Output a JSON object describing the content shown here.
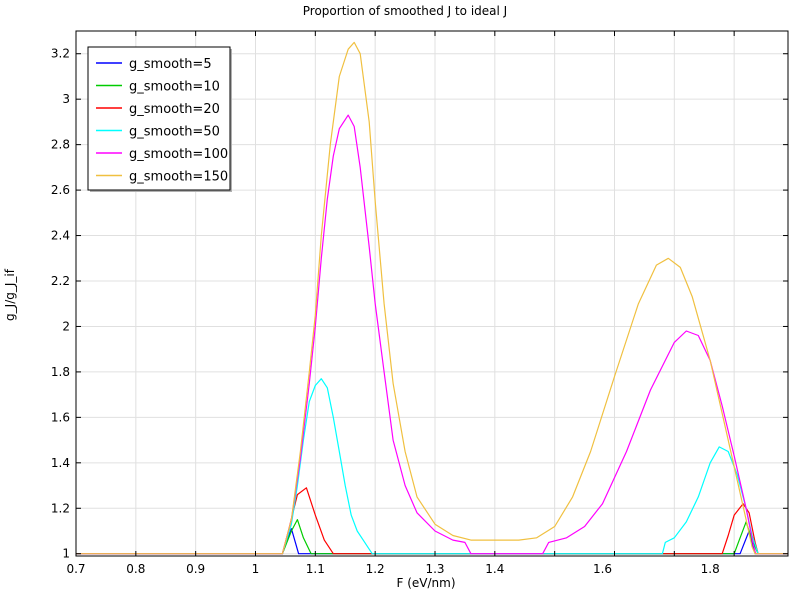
{
  "chart_data": {
    "type": "line",
    "title": "Proportion of smoothed J to ideal J",
    "xlabel": "F (eV/nm)",
    "ylabel": "g_J/g_J_if",
    "xlim": [
      0.7,
      1.89
    ],
    "ylim": [
      0.99,
      3.3
    ],
    "x_tick_values": [
      0.7,
      0.8,
      0.9,
      1.0,
      1.1,
      1.2,
      1.3,
      1.4,
      1.5,
      1.6,
      1.7,
      1.8
    ],
    "x_tick_labels": [
      "0.7",
      "0.8",
      "0.9",
      "1",
      "1.1",
      "1.2",
      "1.3",
      "1.4",
      "1.6",
      "1.8"
    ],
    "x_tick_label_positions": [
      0.7,
      0.8,
      0.9,
      1.0,
      1.1,
      1.2,
      1.3,
      1.4,
      1.58,
      1.76
    ],
    "y_ticks": [
      1,
      1.2,
      1.4,
      1.6,
      1.8,
      2,
      2.2,
      2.4,
      2.6,
      2.8,
      3,
      3.2
    ],
    "y_tick_labels": [
      "1",
      "1.2",
      "1.4",
      "1.6",
      "1.8",
      "2",
      "2.2",
      "2.4",
      "2.6",
      "2.8",
      "3",
      "3.2"
    ],
    "grid": true,
    "legend_position": "top-left",
    "series": [
      {
        "name": "g_smooth=5",
        "color": "#0000ff",
        "points": [
          [
            0.7,
            1
          ],
          [
            1.045,
            1
          ],
          [
            1.06,
            1.11
          ],
          [
            1.072,
            1
          ],
          [
            1.81,
            1
          ],
          [
            1.825,
            1.1
          ],
          [
            1.835,
            1
          ],
          [
            1.89,
            1
          ]
        ]
      },
      {
        "name": "g_smooth=10",
        "color": "#00cc00",
        "points": [
          [
            0.7,
            1
          ],
          [
            1.045,
            1
          ],
          [
            1.06,
            1.1
          ],
          [
            1.07,
            1.15
          ],
          [
            1.08,
            1.07
          ],
          [
            1.093,
            1
          ],
          [
            1.8,
            1
          ],
          [
            1.81,
            1.07
          ],
          [
            1.82,
            1.14
          ],
          [
            1.83,
            1.06
          ],
          [
            1.84,
            1
          ],
          [
            1.89,
            1
          ]
        ]
      },
      {
        "name": "g_smooth=20",
        "color": "#ff0000",
        "points": [
          [
            0.7,
            1
          ],
          [
            1.045,
            1
          ],
          [
            1.055,
            1.1
          ],
          [
            1.07,
            1.26
          ],
          [
            1.085,
            1.29
          ],
          [
            1.1,
            1.17
          ],
          [
            1.115,
            1.06
          ],
          [
            1.13,
            1
          ],
          [
            1.78,
            1
          ],
          [
            1.79,
            1.08
          ],
          [
            1.8,
            1.17
          ],
          [
            1.815,
            1.22
          ],
          [
            1.825,
            1.18
          ],
          [
            1.835,
            1.05
          ],
          [
            1.84,
            1
          ],
          [
            1.89,
            1
          ]
        ]
      },
      {
        "name": "g_smooth=50",
        "color": "#00ffff",
        "points": [
          [
            0.7,
            1
          ],
          [
            1.045,
            1
          ],
          [
            1.06,
            1.13
          ],
          [
            1.07,
            1.3
          ],
          [
            1.08,
            1.5
          ],
          [
            1.09,
            1.67
          ],
          [
            1.1,
            1.74
          ],
          [
            1.11,
            1.77
          ],
          [
            1.12,
            1.73
          ],
          [
            1.13,
            1.6
          ],
          [
            1.14,
            1.45
          ],
          [
            1.15,
            1.3
          ],
          [
            1.16,
            1.17
          ],
          [
            1.17,
            1.1
          ],
          [
            1.18,
            1.06
          ],
          [
            1.19,
            1.02
          ],
          [
            1.195,
            1
          ],
          [
            1.68,
            1
          ],
          [
            1.685,
            1.05
          ],
          [
            1.7,
            1.07
          ],
          [
            1.72,
            1.14
          ],
          [
            1.74,
            1.25
          ],
          [
            1.76,
            1.4
          ],
          [
            1.775,
            1.47
          ],
          [
            1.79,
            1.45
          ],
          [
            1.805,
            1.35
          ],
          [
            1.82,
            1.2
          ],
          [
            1.83,
            1.08
          ],
          [
            1.84,
            1
          ],
          [
            1.89,
            1
          ]
        ]
      },
      {
        "name": "g_smooth=100",
        "color": "#ff00ff",
        "points": [
          [
            0.7,
            1
          ],
          [
            1.045,
            1
          ],
          [
            1.06,
            1.15
          ],
          [
            1.075,
            1.42
          ],
          [
            1.09,
            1.75
          ],
          [
            1.1,
            2.0
          ],
          [
            1.11,
            2.3
          ],
          [
            1.12,
            2.56
          ],
          [
            1.13,
            2.75
          ],
          [
            1.14,
            2.87
          ],
          [
            1.155,
            2.93
          ],
          [
            1.165,
            2.88
          ],
          [
            1.175,
            2.7
          ],
          [
            1.19,
            2.35
          ],
          [
            1.2,
            2.1
          ],
          [
            1.215,
            1.8
          ],
          [
            1.23,
            1.5
          ],
          [
            1.25,
            1.3
          ],
          [
            1.27,
            1.18
          ],
          [
            1.3,
            1.1
          ],
          [
            1.33,
            1.06
          ],
          [
            1.35,
            1.05
          ],
          [
            1.36,
            1
          ],
          [
            1.48,
            1
          ],
          [
            1.49,
            1.05
          ],
          [
            1.52,
            1.07
          ],
          [
            1.55,
            1.12
          ],
          [
            1.58,
            1.22
          ],
          [
            1.62,
            1.45
          ],
          [
            1.66,
            1.72
          ],
          [
            1.7,
            1.93
          ],
          [
            1.72,
            1.98
          ],
          [
            1.74,
            1.96
          ],
          [
            1.76,
            1.85
          ],
          [
            1.78,
            1.65
          ],
          [
            1.8,
            1.43
          ],
          [
            1.82,
            1.2
          ],
          [
            1.832,
            1.04
          ],
          [
            1.836,
            1
          ],
          [
            1.89,
            1
          ]
        ]
      },
      {
        "name": "g_smooth=150",
        "color": "#f0c040",
        "points": [
          [
            0.7,
            1
          ],
          [
            1.045,
            1
          ],
          [
            1.06,
            1.15
          ],
          [
            1.075,
            1.45
          ],
          [
            1.09,
            1.8
          ],
          [
            1.1,
            2.05
          ],
          [
            1.11,
            2.4
          ],
          [
            1.125,
            2.8
          ],
          [
            1.14,
            3.1
          ],
          [
            1.155,
            3.22
          ],
          [
            1.165,
            3.25
          ],
          [
            1.175,
            3.2
          ],
          [
            1.19,
            2.9
          ],
          [
            1.2,
            2.55
          ],
          [
            1.215,
            2.1
          ],
          [
            1.23,
            1.75
          ],
          [
            1.25,
            1.45
          ],
          [
            1.27,
            1.25
          ],
          [
            1.3,
            1.13
          ],
          [
            1.33,
            1.08
          ],
          [
            1.36,
            1.06
          ],
          [
            1.4,
            1.06
          ],
          [
            1.44,
            1.06
          ],
          [
            1.47,
            1.07
          ],
          [
            1.5,
            1.12
          ],
          [
            1.53,
            1.25
          ],
          [
            1.56,
            1.45
          ],
          [
            1.6,
            1.78
          ],
          [
            1.64,
            2.1
          ],
          [
            1.67,
            2.27
          ],
          [
            1.69,
            2.3
          ],
          [
            1.71,
            2.26
          ],
          [
            1.73,
            2.13
          ],
          [
            1.76,
            1.85
          ],
          [
            1.79,
            1.5
          ],
          [
            1.82,
            1.15
          ],
          [
            1.83,
            1.03
          ],
          [
            1.835,
            1
          ],
          [
            1.89,
            1
          ]
        ]
      }
    ]
  }
}
